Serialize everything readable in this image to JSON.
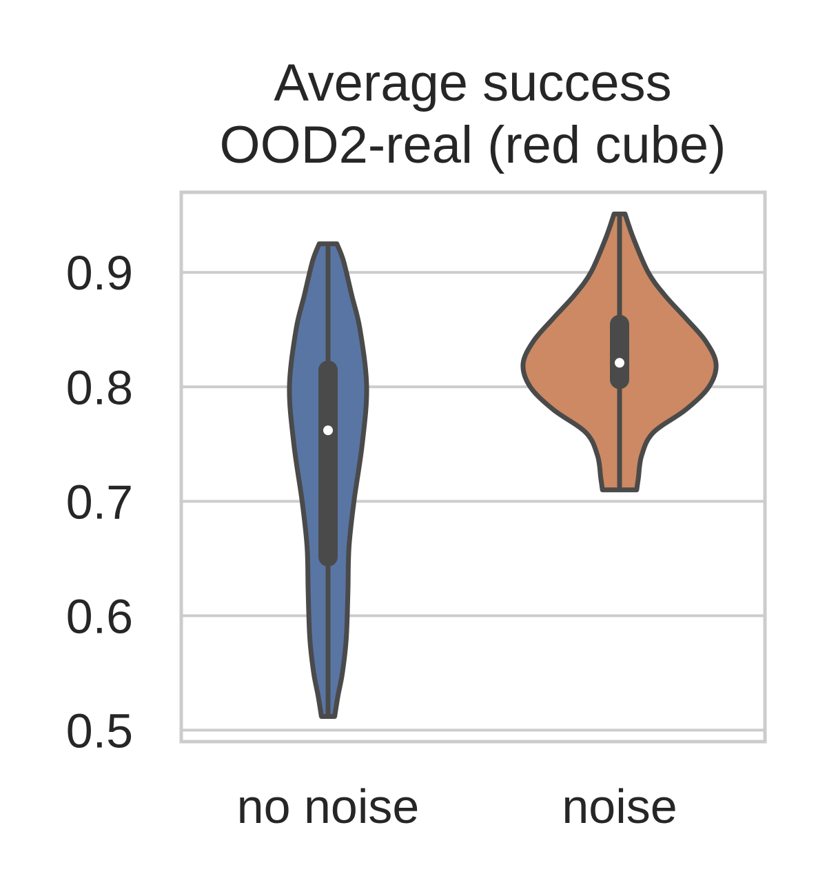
{
  "chart_data": {
    "type": "violin",
    "title": [
      "Average success",
      "OOD2-real  (red cube)"
    ],
    "xlabel": "",
    "ylabel": "",
    "ylim": [
      0.49,
      0.97
    ],
    "yticks": [
      0.5,
      0.6,
      0.7,
      0.8,
      0.9
    ],
    "ytick_labels": [
      "0.5",
      "0.6",
      "0.7",
      "0.8",
      "0.9"
    ],
    "grid": true,
    "categories": [
      "no noise",
      "noise"
    ],
    "series": [
      {
        "name": "no noise",
        "color": "#5975a4",
        "min": 0.512,
        "max": 0.925,
        "q1": 0.643,
        "median": 0.762,
        "q3": 0.823,
        "density": [
          [
            0.512,
            0.12
          ],
          [
            0.53,
            0.18
          ],
          [
            0.55,
            0.26
          ],
          [
            0.58,
            0.33
          ],
          [
            0.62,
            0.36
          ],
          [
            0.66,
            0.38
          ],
          [
            0.7,
            0.47
          ],
          [
            0.75,
            0.62
          ],
          [
            0.8,
            0.7
          ],
          [
            0.85,
            0.58
          ],
          [
            0.88,
            0.43
          ],
          [
            0.91,
            0.28
          ],
          [
            0.925,
            0.16
          ]
        ]
      },
      {
        "name": "noise",
        "color": "#cc8963",
        "min": 0.71,
        "max": 0.951,
        "q1": 0.798,
        "median": 0.821,
        "q3": 0.863,
        "density": [
          [
            0.71,
            0.31
          ],
          [
            0.72,
            0.34
          ],
          [
            0.74,
            0.4
          ],
          [
            0.76,
            0.61
          ],
          [
            0.78,
            1.2
          ],
          [
            0.8,
            1.62
          ],
          [
            0.82,
            1.75
          ],
          [
            0.84,
            1.56
          ],
          [
            0.86,
            1.2
          ],
          [
            0.88,
            0.82
          ],
          [
            0.9,
            0.52
          ],
          [
            0.93,
            0.25
          ],
          [
            0.951,
            0.1
          ]
        ]
      }
    ],
    "colors": {
      "outline": "#4a4a4a",
      "grid": "#cccccc",
      "text": "#262626",
      "median_dot": "#ffffff"
    }
  }
}
